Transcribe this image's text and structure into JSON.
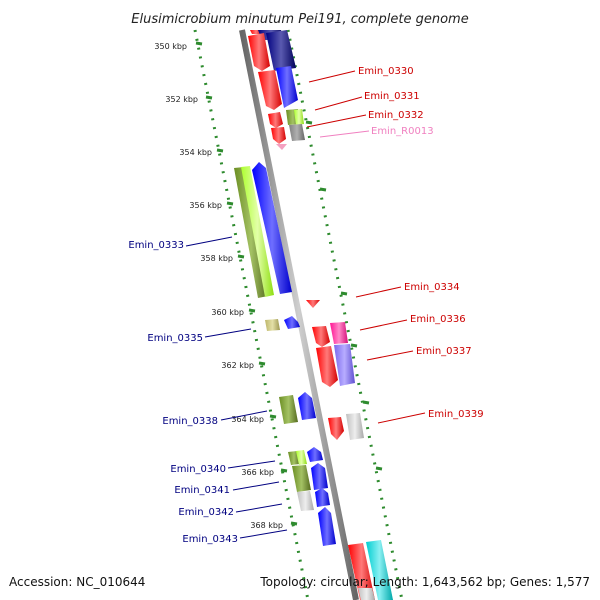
{
  "title": "Elusimicrobium minutum Pei191, complete genome",
  "footer": {
    "accession": "Accession: NC_010644",
    "summary": "Topology: circular; Length: 1,643,562 bp; Genes: 1,577"
  },
  "ticks": [
    "350 kbp",
    "352 kbp",
    "354 kbp",
    "356 kbp",
    "358 kbp",
    "360 kbp",
    "362 kbp",
    "364 kbp",
    "366 kbp",
    "368 kbp"
  ],
  "labels_right": [
    {
      "text": "Emin_0330",
      "color": "#cc0000"
    },
    {
      "text": "Emin_0331",
      "color": "#cc0000"
    },
    {
      "text": "Emin_0332",
      "color": "#cc0000"
    },
    {
      "text": "Emin_R0013",
      "color": "#f080c0"
    },
    {
      "text": "Emin_0334",
      "color": "#cc0000"
    },
    {
      "text": "Emin_0336",
      "color": "#cc0000"
    },
    {
      "text": "Emin_0337",
      "color": "#cc0000"
    },
    {
      "text": "Emin_0339",
      "color": "#cc0000"
    }
  ],
  "labels_left": [
    {
      "text": "Emin_0333",
      "color": "#000080"
    },
    {
      "text": "Emin_0335",
      "color": "#000080"
    },
    {
      "text": "Emin_0338",
      "color": "#000080"
    },
    {
      "text": "Emin_0340",
      "color": "#000080"
    },
    {
      "text": "Emin_0341",
      "color": "#000080"
    },
    {
      "text": "Emin_0342",
      "color": "#000080"
    },
    {
      "text": "Emin_0343",
      "color": "#000080"
    }
  ],
  "colors": {
    "backbone": "#888888",
    "tick_dots": "#2e8b2e",
    "forward": "#0000ff",
    "reverse": "#ff0000",
    "cog_green": "#6b8e23",
    "cog_lime": "#adff2f",
    "cog_navy": "#000080",
    "cog_pink": "#ff1493",
    "cog_purple": "#7b68ee",
    "cog_grey": "#808080",
    "cog_lightgrey": "#c0c0c0",
    "cog_cyan": "#00ced1",
    "cog_tan": "#bdb76b"
  }
}
